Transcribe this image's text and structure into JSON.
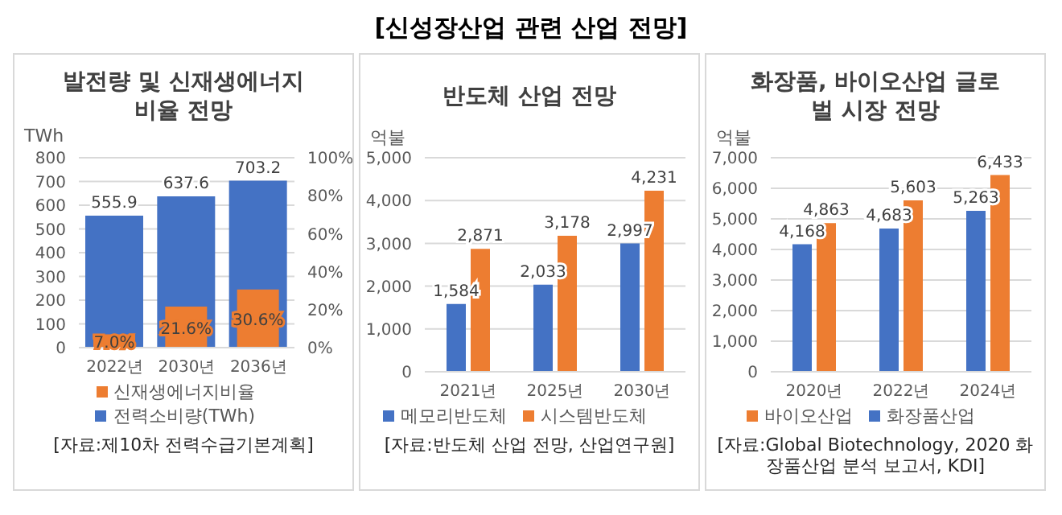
{
  "chart_data": [
    {
      "type": "other",
      "title": "[신성장산업 관련 산업 전망]"
    },
    {
      "type": "bar",
      "title": "발전량 및 신재생에너지 비율 전망",
      "ylabel": "TWh",
      "categories": [
        "2022년",
        "2030년",
        "2036년"
      ],
      "series": [
        {
          "name": "전력소비량(TWh)",
          "color": "#4472c4",
          "values": [
            555.9,
            637.6,
            703.2
          ],
          "value_labels": [
            "555.9",
            "637.6",
            "703.2"
          ]
        },
        {
          "name": "신재생에너지비율",
          "color": "#ed7d31",
          "axis": "y2",
          "values": [
            7.0,
            21.6,
            30.6
          ],
          "value_labels": [
            "7.0%",
            "21.6%",
            "30.6%"
          ]
        }
      ],
      "ylim": [
        0,
        800
      ],
      "yticks": [
        0,
        100,
        200,
        300,
        400,
        500,
        600,
        700,
        800
      ],
      "y2lim": [
        0,
        100
      ],
      "y2ticks": [
        {
          "value": 0,
          "label": "0%"
        },
        {
          "value": 20,
          "label": "20%"
        },
        {
          "value": 40,
          "label": "40%"
        },
        {
          "value": 60,
          "label": "60%"
        },
        {
          "value": 80,
          "label": "80%"
        },
        {
          "value": 100,
          "label": "100%"
        }
      ],
      "grid": "y",
      "legend": "bottom",
      "annotations": [
        "[자료:제10차 전력수급기본계획]"
      ]
    },
    {
      "type": "bar",
      "title": "반도체 산업 전망",
      "ylabel": "억불",
      "categories": [
        "2021년",
        "2025년",
        "2030년"
      ],
      "series": [
        {
          "name": "메모리반도체",
          "color": "#4472c4",
          "values": [
            1584,
            2033,
            2997
          ],
          "value_labels": [
            "1,584",
            "2,033",
            "2,997"
          ]
        },
        {
          "name": "시스템반도체",
          "color": "#ed7d31",
          "values": [
            2871,
            3178,
            4231
          ],
          "value_labels": [
            "2,871",
            "3,178",
            "4,231"
          ]
        }
      ],
      "ylim": [
        0,
        5000
      ],
      "yticks": [
        {
          "value": 0,
          "label": "0"
        },
        {
          "value": 1000,
          "label": "1,000"
        },
        {
          "value": 2000,
          "label": "2,000"
        },
        {
          "value": 3000,
          "label": "3,000"
        },
        {
          "value": 4000,
          "label": "4,000"
        },
        {
          "value": 5000,
          "label": "5,000"
        }
      ],
      "grid": "y",
      "legend": "bottom",
      "annotations": [
        "[자료:반도체 산업 전망, 산업연구원]"
      ]
    },
    {
      "type": "bar",
      "title": "화장품, 바이오산업 글로벌 시장 전망",
      "ylabel": "억불",
      "categories": [
        "2020년",
        "2022년",
        "2024년"
      ],
      "series": [
        {
          "name": "화장품산업",
          "color": "#4472c4",
          "values": [
            4168,
            4683,
            5263
          ],
          "value_labels": [
            "4,168",
            "4,683",
            "5,263"
          ]
        },
        {
          "name": "바이오산업",
          "color": "#ed7d31",
          "values": [
            4863,
            5603,
            6433
          ],
          "value_labels": [
            "4,863",
            "5,603",
            "6,433"
          ]
        }
      ],
      "ylim": [
        0,
        7000
      ],
      "yticks": [
        {
          "value": 0,
          "label": "0"
        },
        {
          "value": 1000,
          "label": "1,000"
        },
        {
          "value": 2000,
          "label": "2,000"
        },
        {
          "value": 3000,
          "label": "3,000"
        },
        {
          "value": 4000,
          "label": "4,000"
        },
        {
          "value": 5000,
          "label": "5,000"
        },
        {
          "value": 6000,
          "label": "6,000"
        },
        {
          "value": 7000,
          "label": "7,000"
        }
      ],
      "grid": "y",
      "legend": "bottom",
      "annotations": [
        "[자료:Global Biotechnology, 2020 화장품산업 분석 보고서, KDI]"
      ]
    }
  ]
}
